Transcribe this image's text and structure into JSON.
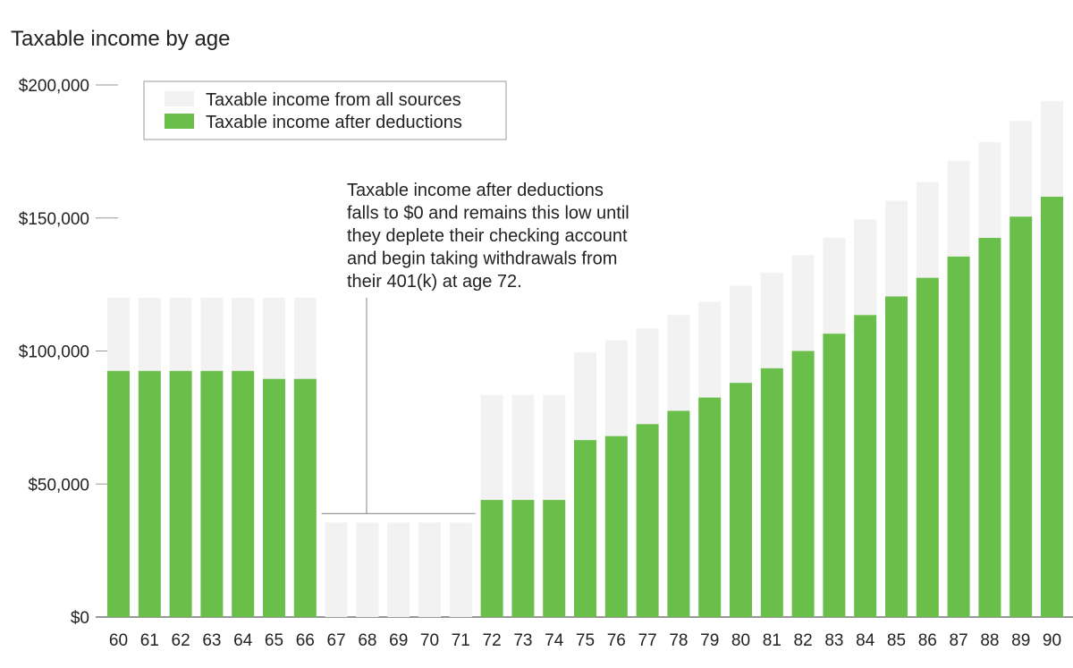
{
  "chart_data": {
    "type": "bar",
    "title": "Taxable income by age",
    "xlabel": "",
    "ylabel": "",
    "ylim": [
      0,
      200000
    ],
    "y_ticks": [
      "$0",
      "$50,000",
      "$100,000",
      "$150,000",
      "$200,000"
    ],
    "y_tick_values": [
      0,
      50000,
      100000,
      150000,
      200000
    ],
    "categories": [
      "60",
      "61",
      "62",
      "63",
      "64",
      "65",
      "66",
      "67",
      "68",
      "69",
      "70",
      "71",
      "72",
      "73",
      "74",
      "75",
      "76",
      "77",
      "78",
      "79",
      "80",
      "81",
      "82",
      "83",
      "84",
      "85",
      "86",
      "87",
      "88",
      "89",
      "90"
    ],
    "series": [
      {
        "name": "Taxable income from all sources",
        "color": "#f2f2f2",
        "values": [
          120000,
          120000,
          120000,
          120000,
          120000,
          120000,
          120000,
          35500,
          35500,
          35500,
          35500,
          35500,
          83500,
          83500,
          83500,
          99500,
          104000,
          108500,
          113500,
          118500,
          124500,
          129500,
          136000,
          142500,
          149500,
          156500,
          163500,
          171500,
          178500,
          186500,
          194000
        ]
      },
      {
        "name": "Taxable income after deductions",
        "color": "#6abf4b",
        "values": [
          92500,
          92500,
          92500,
          92500,
          92500,
          89500,
          89500,
          0,
          0,
          0,
          0,
          0,
          44000,
          44000,
          44000,
          66500,
          68000,
          72500,
          77500,
          82500,
          88000,
          93500,
          100000,
          106500,
          113500,
          120500,
          127500,
          135500,
          142500,
          150500,
          158000
        ]
      }
    ],
    "annotation": {
      "lines": [
        "Taxable income after deductions",
        "falls to $0 and remains this low until",
        "they deplete their checking account",
        "and begin taking withdrawals from",
        "their 401(k) at age 72."
      ],
      "bracket_from": "67",
      "bracket_to": "71"
    },
    "legend_position": "top-left",
    "grid": false
  }
}
